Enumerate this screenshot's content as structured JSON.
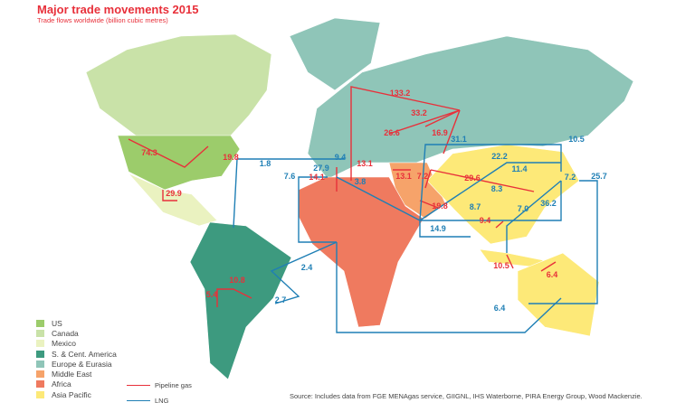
{
  "title": "Major trade movements 2015",
  "subtitle": "Trade flows worldwide (billion cubic metres)",
  "legend": [
    {
      "label": "US",
      "color": "#9ccc6b"
    },
    {
      "label": "Canada",
      "color": "#c9e2a8"
    },
    {
      "label": "Mexico",
      "color": "#eaf2c0"
    },
    {
      "label": "S. & Cent. America",
      "color": "#3d9a7f"
    },
    {
      "label": "Europe & Eurasia",
      "color": "#8fc5b8"
    },
    {
      "label": "Middle East",
      "color": "#f6a36a"
    },
    {
      "label": "Africa",
      "color": "#ef7a5f"
    },
    {
      "label": "Asia Pacific",
      "color": "#fde978"
    }
  ],
  "keys": {
    "pipeline": "Pipeline gas",
    "lng": "LNG",
    "pipeline_color": "#e8303a",
    "lng_color": "#1f7fb5"
  },
  "pipeline_labels": [
    "133.2",
    "33.2",
    "26.6",
    "16.9",
    "74.3",
    "19.8",
    "29.9",
    "13.1",
    "14.1",
    "13.1",
    "7.2",
    "29.6",
    "19.8",
    "9.4",
    "10.5",
    "10.8",
    "5.4",
    "6.4"
  ],
  "lng_labels": [
    "31.1",
    "10.5",
    "22.2",
    "9.4",
    "1.8",
    "27.9",
    "7.6",
    "3.8",
    "11.4",
    "25.7",
    "7.2",
    "8.3",
    "8.7",
    "7.0",
    "36.2",
    "14.9",
    "2.4",
    "2.7",
    "6.4"
  ],
  "source": "Source: Includes data from FGE MENAgas service, GIIGNL, IHS Waterborne, PIRA Energy Group, Wood Mackenzie."
}
